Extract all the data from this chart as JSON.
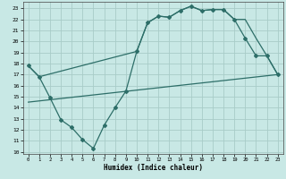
{
  "xlabel": "Humidex (Indice chaleur)",
  "background_color": "#c8e8e5",
  "grid_color": "#a8ccc8",
  "line_color": "#2d6e68",
  "xlim": [
    -0.5,
    23.5
  ],
  "ylim": [
    9.8,
    23.6
  ],
  "xticks": [
    0,
    1,
    2,
    3,
    4,
    5,
    6,
    7,
    8,
    9,
    10,
    11,
    12,
    13,
    14,
    15,
    16,
    17,
    18,
    19,
    20,
    21,
    22,
    23
  ],
  "yticks": [
    10,
    11,
    12,
    13,
    14,
    15,
    16,
    17,
    18,
    19,
    20,
    21,
    22,
    23
  ],
  "curve1_x": [
    0,
    1,
    2,
    3,
    4,
    5,
    6,
    7,
    8,
    9,
    10,
    11,
    12,
    13,
    14,
    15,
    16,
    17,
    18,
    19,
    20,
    21,
    22,
    23
  ],
  "curve1_y": [
    17.8,
    16.8,
    14.9,
    12.9,
    12.2,
    11.1,
    10.3,
    12.4,
    14.0,
    15.5,
    19.1,
    21.7,
    22.3,
    22.2,
    22.8,
    23.2,
    22.8,
    22.9,
    22.9,
    22.0,
    20.3,
    18.7,
    18.7,
    17.0
  ],
  "curve2_x": [
    0,
    1,
    10,
    11,
    12,
    13,
    14,
    15,
    16,
    17,
    18,
    19,
    20,
    21,
    22,
    23
  ],
  "curve2_y": [
    17.8,
    16.8,
    19.1,
    21.7,
    22.3,
    22.2,
    22.8,
    23.2,
    22.8,
    22.9,
    22.9,
    22.0,
    22.0,
    20.3,
    18.7,
    17.0
  ],
  "curve3_x": [
    0,
    23
  ],
  "curve3_y": [
    14.5,
    17.0
  ]
}
